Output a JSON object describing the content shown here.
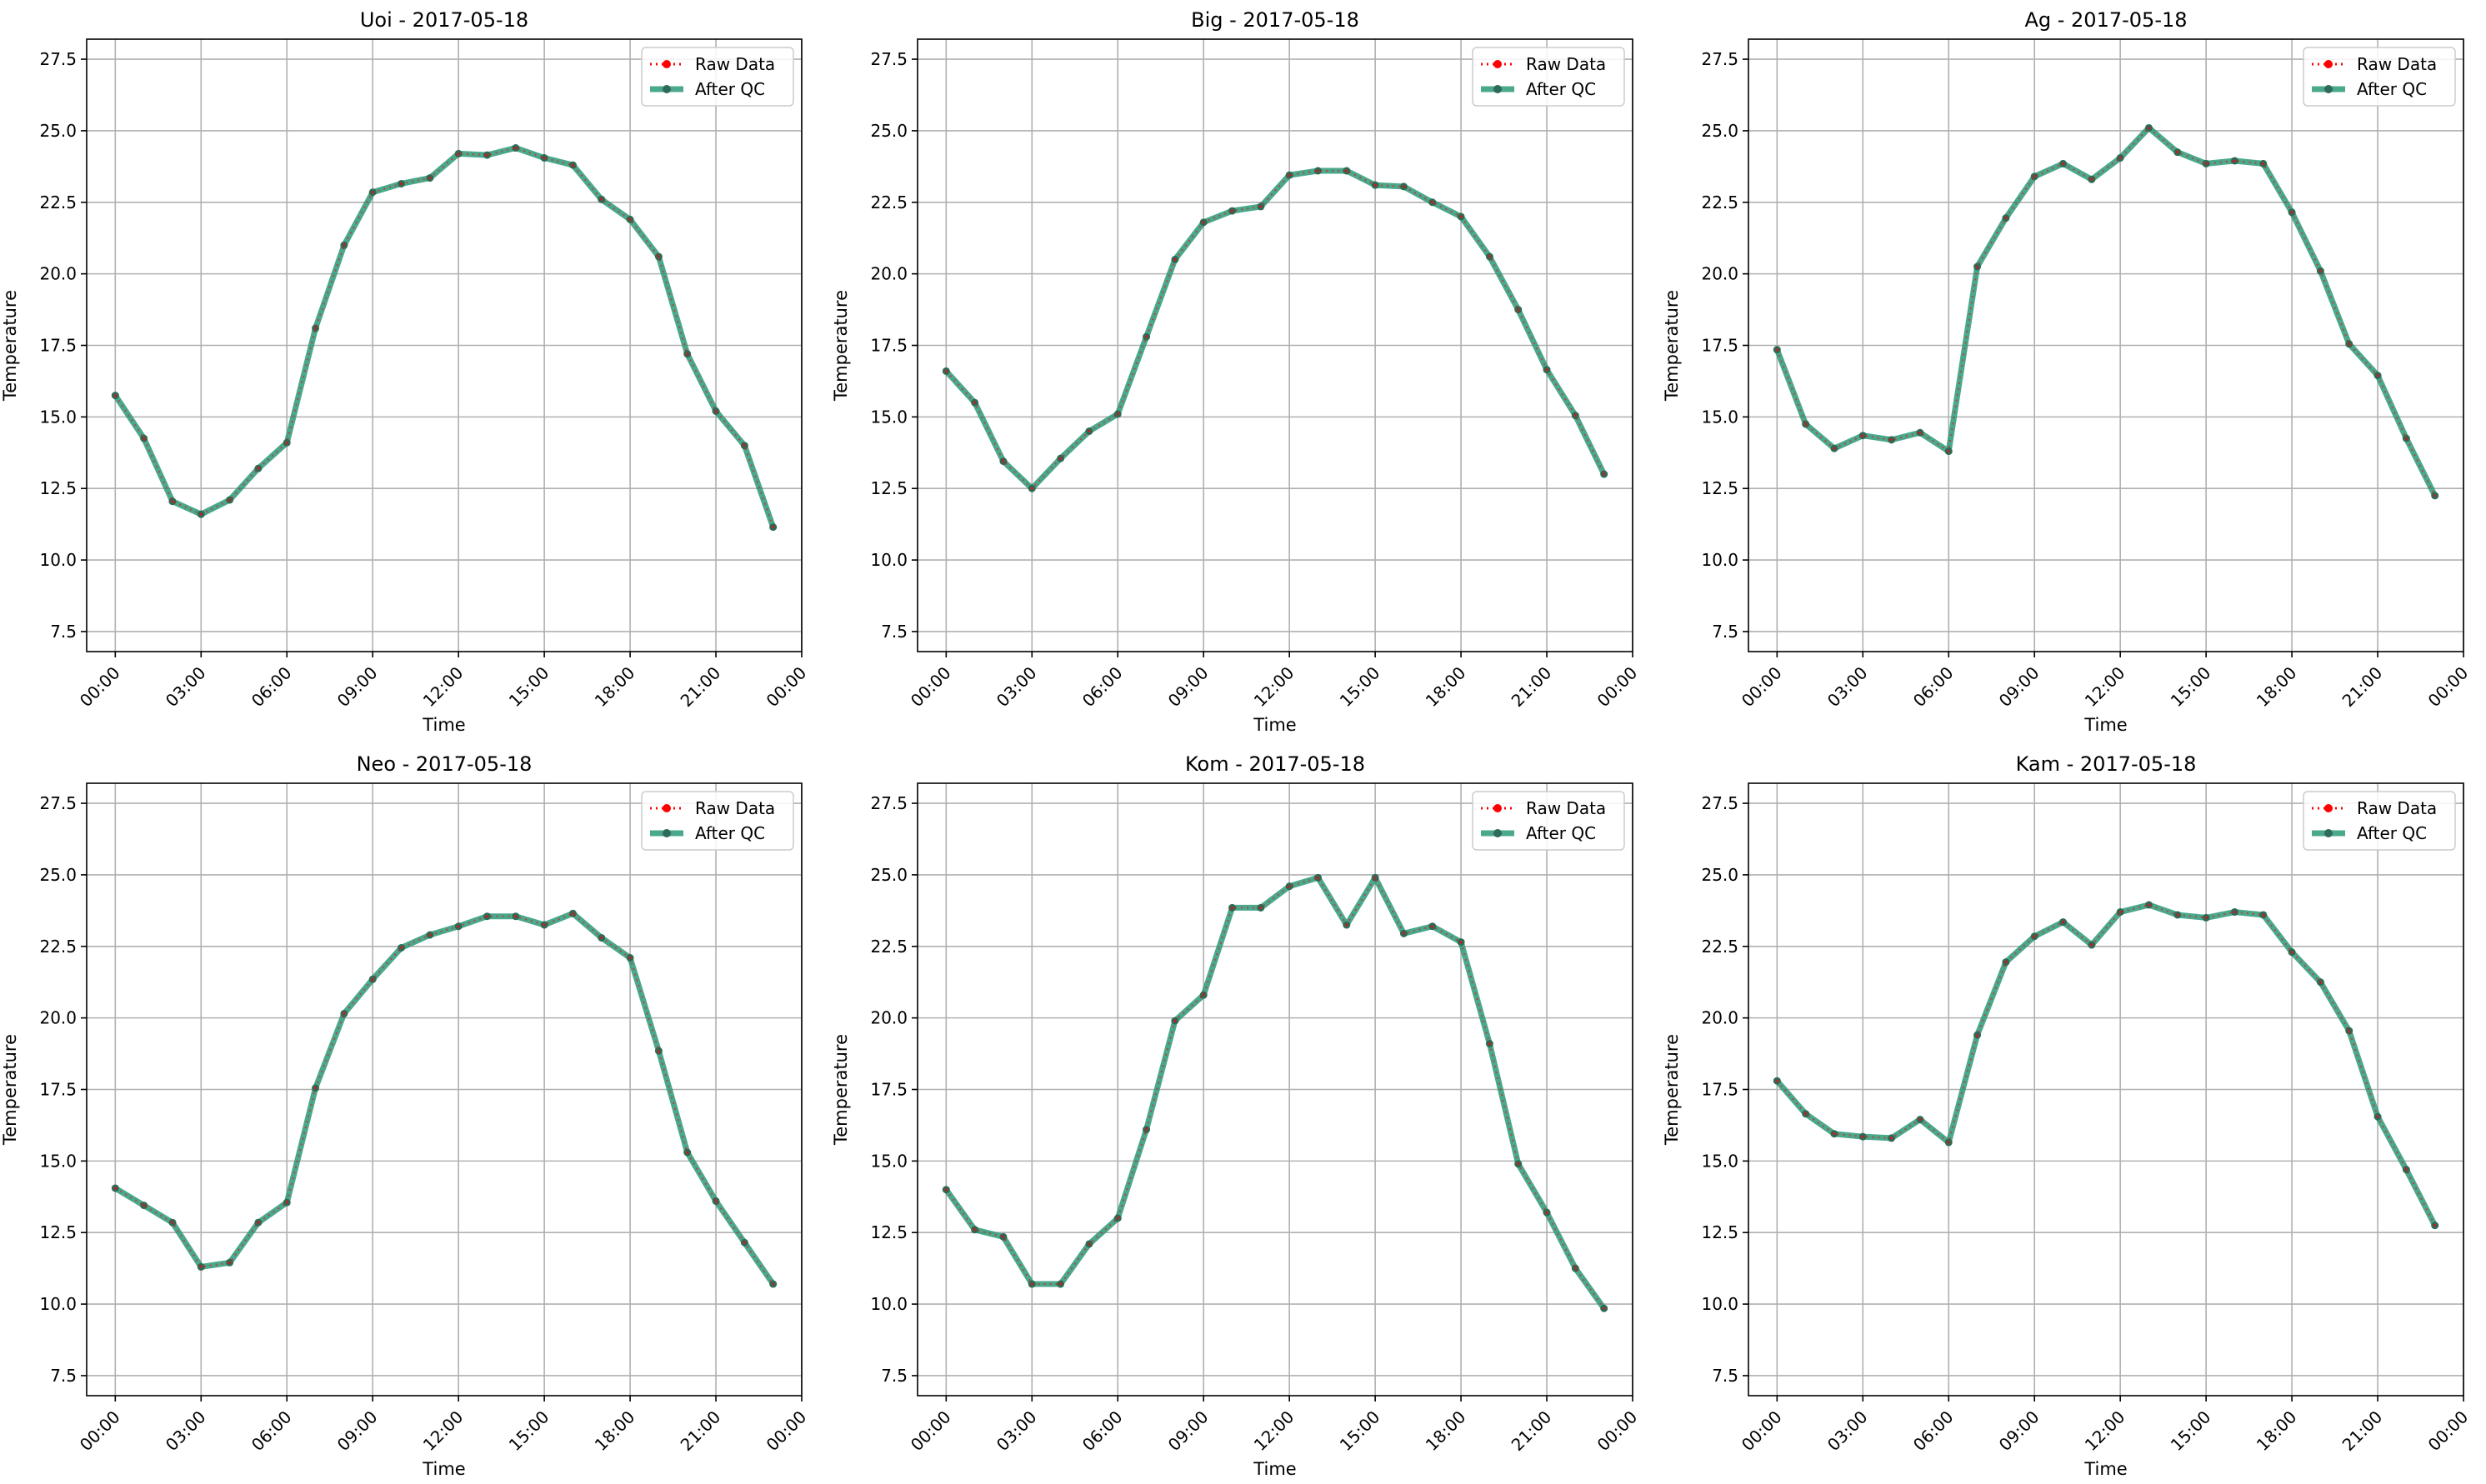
{
  "figure": {
    "x_tick_labels": [
      "00:00",
      "03:00",
      "06:00",
      "09:00",
      "12:00",
      "15:00",
      "18:00",
      "21:00",
      "00:00"
    ],
    "y_tick_labels": [
      "7.5",
      "10.0",
      "12.5",
      "15.0",
      "17.5",
      "20.0",
      "22.5",
      "25.0",
      "27.5"
    ],
    "legend": {
      "raw_label": "Raw Data",
      "qc_label": "After QC",
      "placement": "upper right"
    },
    "colors": {
      "raw": "#ff0000",
      "qc": "#2a9a78",
      "qc_marker": "#2e6b58",
      "grid": "#b0b0b0",
      "axes": "#000000"
    }
  },
  "chart_data": [
    {
      "type": "line",
      "title": "Uoi - 2017-05-18",
      "xlabel": "Time",
      "ylabel": "Temperature",
      "xlim": [
        "2017-05-17 23:00",
        "2017-05-19 00:00"
      ],
      "ylim": [
        6.8,
        28.2
      ],
      "grid": true,
      "legend_position": "top-right",
      "x": [
        "00:00",
        "01:00",
        "02:00",
        "03:00",
        "04:00",
        "05:00",
        "06:00",
        "07:00",
        "08:00",
        "09:00",
        "10:00",
        "11:00",
        "12:00",
        "13:00",
        "14:00",
        "15:00",
        "16:00",
        "17:00",
        "18:00",
        "19:00",
        "20:00",
        "21:00",
        "22:00",
        "23:00"
      ],
      "series": [
        {
          "name": "Raw Data",
          "values": [
            15.75,
            14.25,
            12.05,
            11.6,
            12.1,
            13.2,
            14.1,
            18.1,
            21.0,
            22.85,
            23.15,
            23.35,
            24.2,
            24.15,
            24.4,
            24.05,
            23.8,
            22.6,
            21.9,
            20.6,
            17.2,
            15.2,
            14.0,
            11.15
          ]
        },
        {
          "name": "After QC",
          "values": [
            15.75,
            14.25,
            12.05,
            11.6,
            12.1,
            13.2,
            14.1,
            18.1,
            21.0,
            22.85,
            23.15,
            23.35,
            24.2,
            24.15,
            24.4,
            24.05,
            23.8,
            22.6,
            21.9,
            20.6,
            17.2,
            15.2,
            14.0,
            11.15
          ]
        }
      ]
    },
    {
      "type": "line",
      "title": "Big - 2017-05-18",
      "xlabel": "Time",
      "ylabel": "Temperature",
      "xlim": [
        "2017-05-17 23:00",
        "2017-05-19 00:00"
      ],
      "ylim": [
        6.8,
        28.2
      ],
      "grid": true,
      "legend_position": "top-right",
      "x": [
        "00:00",
        "01:00",
        "02:00",
        "03:00",
        "04:00",
        "05:00",
        "06:00",
        "07:00",
        "08:00",
        "09:00",
        "10:00",
        "11:00",
        "12:00",
        "13:00",
        "14:00",
        "15:00",
        "16:00",
        "17:00",
        "18:00",
        "19:00",
        "20:00",
        "21:00",
        "22:00",
        "23:00"
      ],
      "series": [
        {
          "name": "Raw Data",
          "values": [
            16.6,
            15.5,
            13.45,
            12.5,
            13.55,
            14.5,
            15.1,
            17.8,
            20.5,
            21.8,
            22.2,
            22.35,
            23.45,
            23.6,
            23.6,
            23.1,
            23.05,
            22.5,
            22.0,
            20.6,
            18.75,
            16.65,
            15.05,
            13.0
          ]
        },
        {
          "name": "After QC",
          "values": [
            16.6,
            15.5,
            13.45,
            12.5,
            13.55,
            14.5,
            15.1,
            17.8,
            20.5,
            21.8,
            22.2,
            22.35,
            23.45,
            23.6,
            23.6,
            23.1,
            23.05,
            22.5,
            22.0,
            20.6,
            18.75,
            16.65,
            15.05,
            13.0
          ]
        }
      ]
    },
    {
      "type": "line",
      "title": "Ag - 2017-05-18",
      "xlabel": "Time",
      "ylabel": "Temperature",
      "xlim": [
        "2017-05-17 23:00",
        "2017-05-19 00:00"
      ],
      "ylim": [
        6.8,
        28.2
      ],
      "grid": true,
      "legend_position": "top-right",
      "x": [
        "00:00",
        "01:00",
        "02:00",
        "03:00",
        "04:00",
        "05:00",
        "06:00",
        "07:00",
        "08:00",
        "09:00",
        "10:00",
        "11:00",
        "12:00",
        "13:00",
        "14:00",
        "15:00",
        "16:00",
        "17:00",
        "18:00",
        "19:00",
        "20:00",
        "21:00",
        "22:00",
        "23:00"
      ],
      "series": [
        {
          "name": "Raw Data",
          "values": [
            17.35,
            14.75,
            13.9,
            14.35,
            14.2,
            14.45,
            13.8,
            20.25,
            21.95,
            23.4,
            23.85,
            23.3,
            24.05,
            25.1,
            24.25,
            23.85,
            23.95,
            23.85,
            22.15,
            20.1,
            17.55,
            16.45,
            14.25,
            12.25
          ]
        },
        {
          "name": "After QC",
          "values": [
            17.35,
            14.75,
            13.9,
            14.35,
            14.2,
            14.45,
            13.8,
            20.25,
            21.95,
            23.4,
            23.85,
            23.3,
            24.05,
            25.1,
            24.25,
            23.85,
            23.95,
            23.85,
            22.15,
            20.1,
            17.55,
            16.45,
            14.25,
            12.25
          ]
        }
      ]
    },
    {
      "type": "line",
      "title": "Neo - 2017-05-18",
      "xlabel": "Time",
      "ylabel": "Temperature",
      "xlim": [
        "2017-05-17 23:00",
        "2017-05-19 00:00"
      ],
      "ylim": [
        6.8,
        28.2
      ],
      "grid": true,
      "legend_position": "top-right",
      "x": [
        "00:00",
        "01:00",
        "02:00",
        "03:00",
        "04:00",
        "05:00",
        "06:00",
        "07:00",
        "08:00",
        "09:00",
        "10:00",
        "11:00",
        "12:00",
        "13:00",
        "14:00",
        "15:00",
        "16:00",
        "17:00",
        "18:00",
        "19:00",
        "20:00",
        "21:00",
        "22:00",
        "23:00"
      ],
      "series": [
        {
          "name": "Raw Data",
          "values": [
            14.05,
            13.45,
            12.85,
            11.3,
            11.45,
            12.85,
            13.55,
            17.55,
            20.15,
            21.35,
            22.45,
            22.9,
            23.2,
            23.55,
            23.55,
            23.25,
            23.65,
            22.8,
            22.1,
            18.85,
            15.3,
            13.6,
            12.15,
            10.7
          ]
        },
        {
          "name": "After QC",
          "values": [
            14.05,
            13.45,
            12.85,
            11.3,
            11.45,
            12.85,
            13.55,
            17.55,
            20.15,
            21.35,
            22.45,
            22.9,
            23.2,
            23.55,
            23.55,
            23.25,
            23.65,
            22.8,
            22.1,
            18.85,
            15.3,
            13.6,
            12.15,
            10.7
          ]
        }
      ]
    },
    {
      "type": "line",
      "title": "Kom - 2017-05-18",
      "xlabel": "Time",
      "ylabel": "Temperature",
      "xlim": [
        "2017-05-17 23:00",
        "2017-05-19 00:00"
      ],
      "ylim": [
        6.8,
        28.2
      ],
      "grid": true,
      "legend_position": "top-right",
      "x": [
        "00:00",
        "01:00",
        "02:00",
        "03:00",
        "04:00",
        "05:00",
        "06:00",
        "07:00",
        "08:00",
        "09:00",
        "10:00",
        "11:00",
        "12:00",
        "13:00",
        "14:00",
        "15:00",
        "16:00",
        "17:00",
        "18:00",
        "19:00",
        "20:00",
        "21:00",
        "22:00",
        "23:00"
      ],
      "series": [
        {
          "name": "Raw Data",
          "values": [
            14.0,
            12.6,
            12.35,
            10.7,
            10.7,
            12.1,
            13.0,
            16.1,
            19.9,
            20.8,
            23.85,
            23.85,
            24.6,
            24.9,
            23.25,
            24.9,
            22.95,
            23.2,
            22.65,
            19.1,
            14.9,
            13.2,
            11.25,
            9.85
          ]
        },
        {
          "name": "After QC",
          "values": [
            14.0,
            12.6,
            12.35,
            10.7,
            10.7,
            12.1,
            13.0,
            16.1,
            19.9,
            20.8,
            23.85,
            23.85,
            24.6,
            24.9,
            23.25,
            24.9,
            22.95,
            23.2,
            22.65,
            19.1,
            14.9,
            13.2,
            11.25,
            9.85
          ]
        }
      ]
    },
    {
      "type": "line",
      "title": "Kam - 2017-05-18",
      "xlabel": "Time",
      "ylabel": "Temperature",
      "xlim": [
        "2017-05-17 23:00",
        "2017-05-19 00:00"
      ],
      "ylim": [
        6.8,
        28.2
      ],
      "grid": true,
      "legend_position": "top-right",
      "x": [
        "00:00",
        "01:00",
        "02:00",
        "03:00",
        "04:00",
        "05:00",
        "06:00",
        "07:00",
        "08:00",
        "09:00",
        "10:00",
        "11:00",
        "12:00",
        "13:00",
        "14:00",
        "15:00",
        "16:00",
        "17:00",
        "18:00",
        "19:00",
        "20:00",
        "21:00",
        "22:00",
        "23:00"
      ],
      "series": [
        {
          "name": "Raw Data",
          "values": [
            17.8,
            16.65,
            15.95,
            15.85,
            15.8,
            16.45,
            15.65,
            19.4,
            21.95,
            22.85,
            23.35,
            22.55,
            23.7,
            23.95,
            23.6,
            23.5,
            23.7,
            23.6,
            22.3,
            21.25,
            19.55,
            16.55,
            14.7,
            12.75
          ]
        },
        {
          "name": "After QC",
          "values": [
            17.8,
            16.65,
            15.95,
            15.85,
            15.8,
            16.45,
            15.65,
            19.4,
            21.95,
            22.85,
            23.35,
            22.55,
            23.7,
            23.95,
            23.6,
            23.5,
            23.7,
            23.6,
            22.3,
            21.25,
            19.55,
            16.55,
            14.7,
            12.75
          ]
        }
      ]
    }
  ]
}
